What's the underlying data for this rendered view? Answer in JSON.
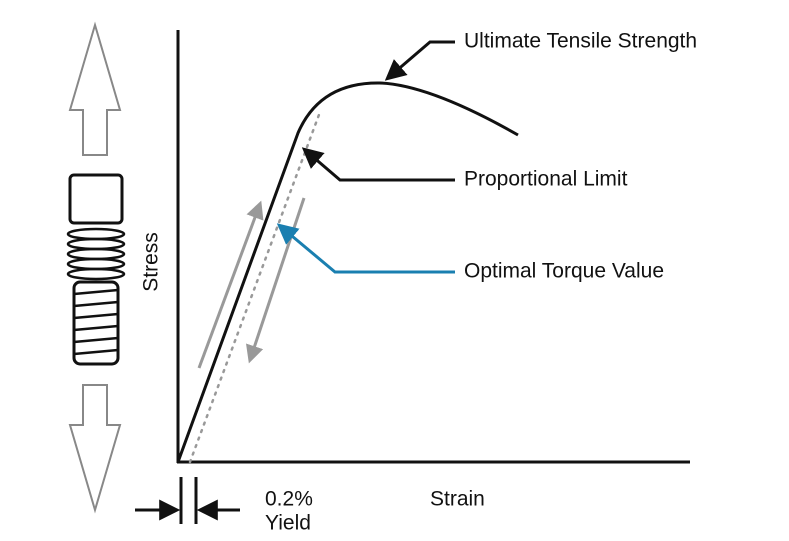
{
  "annotations": {
    "ultimate": "Ultimate Tensile Strength",
    "proportional": "Proportional Limit",
    "optimal": "Optimal Torque Value"
  },
  "axes": {
    "y_label": "Stress",
    "x_label": "Strain"
  },
  "yield": {
    "percent": "0.2%",
    "label": "Yield"
  }
}
